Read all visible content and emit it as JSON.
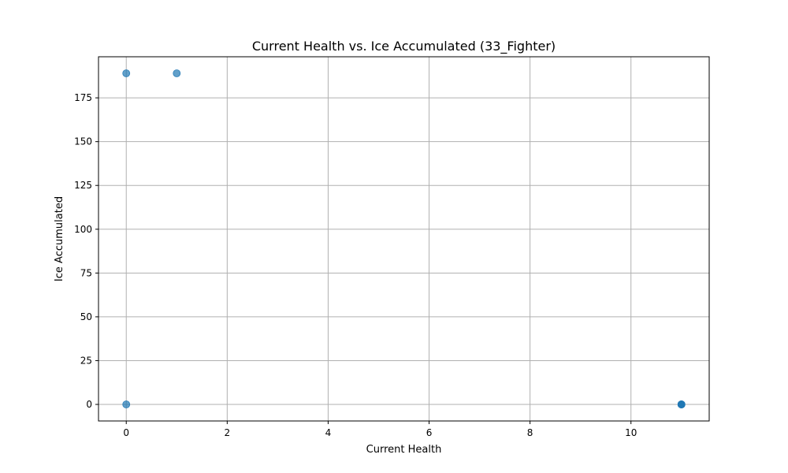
{
  "chart_data": {
    "type": "scatter",
    "title": "Current Health vs. Ice Accumulated (33_Fighter)",
    "xlabel": "Current Health",
    "ylabel": "Ice Accumulated",
    "xlim": [
      -0.55,
      11.55
    ],
    "ylim": [
      -9.45,
      198.45
    ],
    "xticks": [
      0,
      2,
      4,
      6,
      8,
      10
    ],
    "yticks": [
      0,
      25,
      50,
      75,
      100,
      125,
      150,
      175
    ],
    "grid": true,
    "marker_color": "#1f77b4",
    "marker_alpha": 0.7,
    "points": [
      {
        "x": 0,
        "y": 189
      },
      {
        "x": 1,
        "y": 189
      },
      {
        "x": 0,
        "y": 0
      },
      {
        "x": 11,
        "y": 0
      },
      {
        "x": 11,
        "y": 0
      },
      {
        "x": 11,
        "y": 0
      },
      {
        "x": 11,
        "y": 0
      }
    ]
  }
}
